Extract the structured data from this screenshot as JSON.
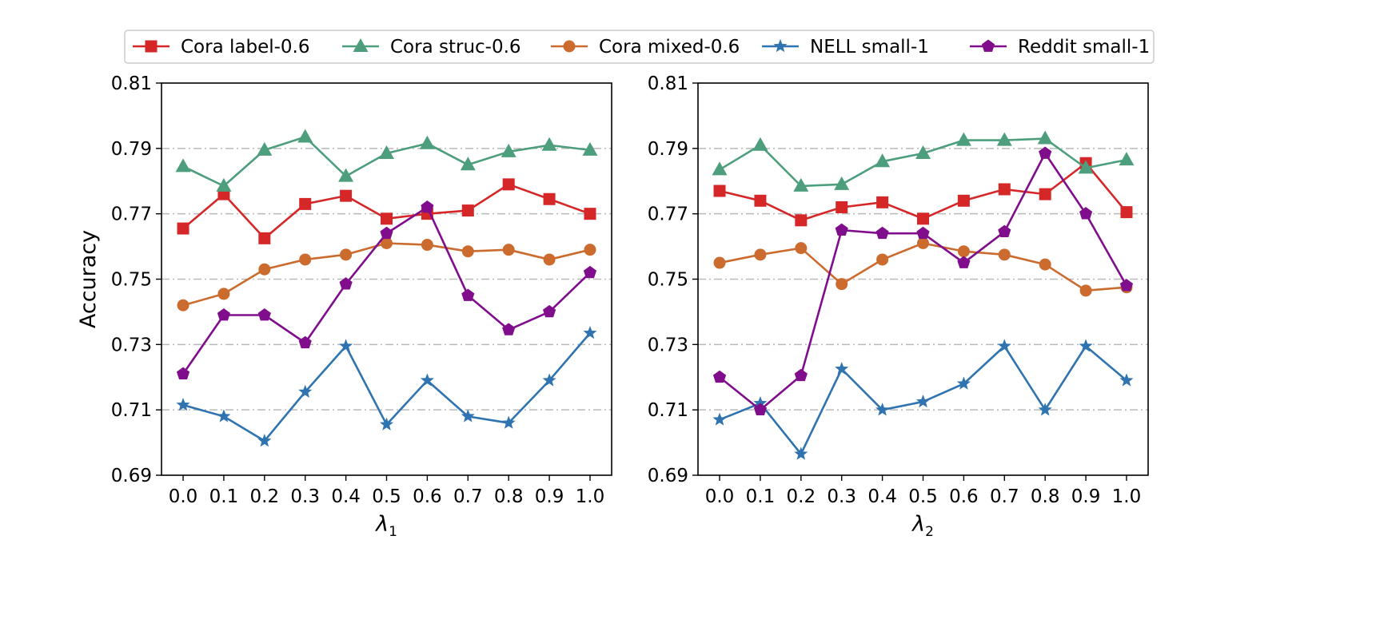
{
  "chart_data": [
    {
      "type": "line",
      "xlabel": "λ1",
      "ylabel": "Accuracy",
      "x": [
        0.0,
        0.1,
        0.2,
        0.3,
        0.4,
        0.5,
        0.6,
        0.7,
        0.8,
        0.9,
        1.0
      ],
      "x_ticks": [
        "0.0",
        "0.1",
        "0.2",
        "0.3",
        "0.4",
        "0.5",
        "0.6",
        "0.7",
        "0.8",
        "0.9",
        "1.0"
      ],
      "ylim": [
        0.69,
        0.81
      ],
      "y_ticks": [
        "0.69",
        "0.71",
        "0.73",
        "0.75",
        "0.77",
        "0.79",
        "0.81"
      ],
      "grid": "horizontal dash-dot",
      "series": [
        {
          "name": "Cora label-0.6",
          "color": "#d62728",
          "marker": "square",
          "values": [
            0.7655,
            0.776,
            0.7625,
            0.773,
            0.7755,
            0.7685,
            0.77,
            0.771,
            0.779,
            0.7745,
            0.77
          ]
        },
        {
          "name": "Cora struc-0.6",
          "color": "#4c9e7c",
          "marker": "triangle",
          "values": [
            0.7845,
            0.7785,
            0.7895,
            0.7935,
            0.7815,
            0.7885,
            0.7915,
            0.785,
            0.789,
            0.791,
            0.7895
          ]
        },
        {
          "name": "Cora mixed-0.6",
          "color": "#cc6b2e",
          "marker": "circle",
          "values": [
            0.742,
            0.7455,
            0.753,
            0.756,
            0.7575,
            0.761,
            0.7605,
            0.7585,
            0.759,
            0.756,
            0.759
          ]
        },
        {
          "name": "NELL small-1",
          "color": "#2f73b0",
          "marker": "star",
          "values": [
            0.7115,
            0.708,
            0.7005,
            0.7155,
            0.7295,
            0.7055,
            0.719,
            0.708,
            0.706,
            0.719,
            0.7335
          ]
        },
        {
          "name": "Reddit small-1",
          "color": "#800d8c",
          "marker": "pentagon",
          "values": [
            0.721,
            0.739,
            0.739,
            0.7305,
            0.7485,
            0.764,
            0.772,
            0.745,
            0.7345,
            0.74,
            0.752
          ]
        }
      ]
    },
    {
      "type": "line",
      "xlabel": "λ2",
      "ylabel": "",
      "x": [
        0.0,
        0.1,
        0.2,
        0.3,
        0.4,
        0.5,
        0.6,
        0.7,
        0.8,
        0.9,
        1.0
      ],
      "x_ticks": [
        "0.0",
        "0.1",
        "0.2",
        "0.3",
        "0.4",
        "0.5",
        "0.6",
        "0.7",
        "0.8",
        "0.9",
        "1.0"
      ],
      "ylim": [
        0.69,
        0.81
      ],
      "y_ticks": [
        "0.69",
        "0.71",
        "0.73",
        "0.75",
        "0.77",
        "0.79",
        "0.81"
      ],
      "grid": "horizontal dash-dot",
      "series": [
        {
          "name": "Cora label-0.6",
          "color": "#d62728",
          "marker": "square",
          "values": [
            0.777,
            0.774,
            0.768,
            0.772,
            0.7735,
            0.7685,
            0.774,
            0.7775,
            0.776,
            0.7855,
            0.7705
          ]
        },
        {
          "name": "Cora struc-0.6",
          "color": "#4c9e7c",
          "marker": "triangle",
          "values": [
            0.7835,
            0.791,
            0.7785,
            0.779,
            0.786,
            0.7885,
            0.7925,
            0.7925,
            0.793,
            0.784,
            0.7865
          ]
        },
        {
          "name": "Cora mixed-0.6",
          "color": "#cc6b2e",
          "marker": "circle",
          "values": [
            0.755,
            0.7575,
            0.7595,
            0.7485,
            0.756,
            0.761,
            0.7585,
            0.7575,
            0.7545,
            0.7465,
            0.7475
          ]
        },
        {
          "name": "NELL small-1",
          "color": "#2f73b0",
          "marker": "star",
          "values": [
            0.707,
            0.712,
            0.6965,
            0.7225,
            0.71,
            0.7125,
            0.718,
            0.7295,
            0.71,
            0.7295,
            0.719
          ]
        },
        {
          "name": "Reddit small-1",
          "color": "#800d8c",
          "marker": "pentagon",
          "values": [
            0.72,
            0.71,
            0.7205,
            0.765,
            0.764,
            0.764,
            0.755,
            0.7645,
            0.7885,
            0.77,
            0.748
          ]
        }
      ]
    }
  ]
}
